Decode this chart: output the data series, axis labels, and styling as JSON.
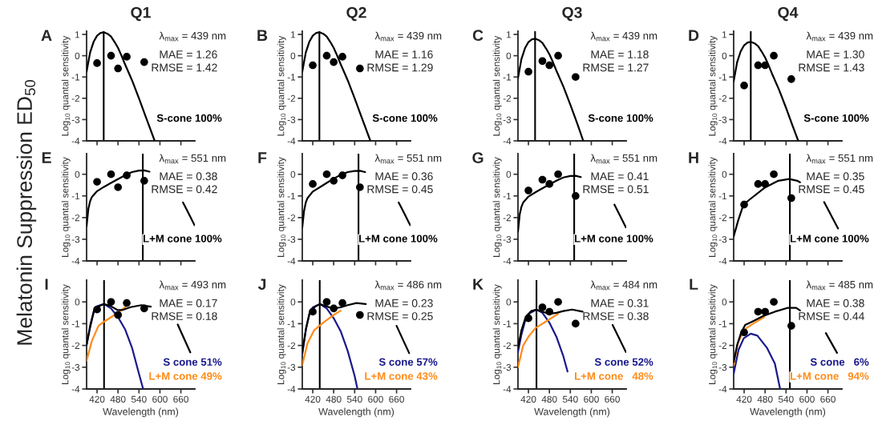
{
  "chart_data": [
    {
      "type": "line",
      "title": "Q1",
      "ylabel": "Log$_{10}$ quantal sensitivity",
      "xlim": [
        390,
        700
      ],
      "xticks": [
        420,
        480,
        540,
        600,
        660
      ],
      "ylim": [
        -4,
        1.15
      ],
      "yticks": [
        -4,
        -3,
        -2,
        -1,
        0,
        1
      ],
      "tick_labels": "y",
      "ref_lines": [
        {
          "axis": "x",
          "value": 439,
          "color": "#000000"
        }
      ],
      "annotations": [
        "A",
        "λ$_{max}$ = 439 nm",
        "MAE = 1.26",
        "RMSE = 1.42",
        "Melatonin Suppression ED$_{50}$"
      ],
      "series": [
        {
          "type": "scatter",
          "marker": "circle",
          "color": "#000000",
          "x": [
            420,
            460,
            480,
            505,
            555
          ],
          "values": [
            -0.35,
            0,
            -0.6,
            -0.05,
            -0.3
          ]
        },
        {
          "type": "line",
          "name": "S-cone 100%",
          "color": "#000000",
          "x": [
            390,
            400,
            410,
            420,
            430,
            439,
            450,
            460,
            470,
            480,
            490,
            500,
            520,
            540,
            560,
            585
          ],
          "values": [
            -0.75,
            0.15,
            0.65,
            0.94,
            1.07,
            1.1,
            1.03,
            0.9,
            0.65,
            0.37,
            0.0,
            -0.4,
            -1.15,
            -2.0,
            -2.9,
            -4.0
          ]
        }
      ]
    },
    {
      "type": "line",
      "title": "Q2",
      "ylabel": "Log$_{10}$ quantal sensitivity",
      "xlim": [
        390,
        700
      ],
      "xticks": [
        420,
        480,
        540,
        600,
        660
      ],
      "ylim": [
        -4,
        1.15
      ],
      "yticks": [
        -4,
        -3,
        -2,
        -1,
        0,
        1
      ],
      "tick_labels": "y",
      "ref_lines": [
        {
          "axis": "x",
          "value": 439,
          "color": "#000000"
        }
      ],
      "annotations": [
        "B",
        "λ$_{max}$ = 439 nm",
        "MAE = 1.16",
        "RMSE = 1.29"
      ],
      "series": [
        {
          "type": "scatter",
          "marker": "circle",
          "color": "#000000",
          "x": [
            420,
            460,
            480,
            505,
            555
          ],
          "values": [
            -0.45,
            0,
            -0.3,
            -0.05,
            -0.6
          ]
        },
        {
          "type": "line",
          "name": "S-cone 100%",
          "color": "#000000",
          "x": [
            390,
            400,
            410,
            420,
            430,
            439,
            450,
            460,
            470,
            480,
            490,
            500,
            520,
            540,
            560,
            585
          ],
          "values": [
            -0.75,
            0.15,
            0.65,
            0.94,
            1.07,
            1.1,
            1.03,
            0.9,
            0.65,
            0.37,
            0.0,
            -0.4,
            -1.15,
            -2.0,
            -2.9,
            -4.0
          ]
        }
      ]
    },
    {
      "type": "line",
      "title": "Q3",
      "ylabel": "Log$_{10}$ quantal sensitivity",
      "xlim": [
        390,
        700
      ],
      "xticks": [
        420,
        480,
        540,
        600,
        660
      ],
      "ylim": [
        -4,
        1.15
      ],
      "yticks": [
        -4,
        -3,
        -2,
        -1,
        0,
        1
      ],
      "tick_labels": "y",
      "ref_lines": [
        {
          "axis": "x",
          "value": 439,
          "color": "#000000"
        }
      ],
      "annotations": [
        "C",
        "λ$_{max}$ = 439 nm",
        "MAE = 1.18",
        "RMSE = 1.27"
      ],
      "series": [
        {
          "type": "scatter",
          "marker": "circle",
          "color": "#000000",
          "x": [
            420,
            460,
            480,
            505,
            555
          ],
          "values": [
            -0.75,
            -0.25,
            -0.45,
            0,
            -1.0
          ]
        },
        {
          "type": "line",
          "name": "S-cone 100%",
          "color": "#000000",
          "x": [
            390,
            400,
            410,
            420,
            430,
            439,
            450,
            460,
            470,
            480,
            490,
            500,
            520,
            540,
            560,
            577
          ],
          "values": [
            -1.05,
            -0.15,
            0.35,
            0.64,
            0.77,
            0.8,
            0.73,
            0.6,
            0.35,
            0.07,
            -0.3,
            -0.7,
            -1.45,
            -2.3,
            -3.2,
            -4.0
          ]
        }
      ]
    },
    {
      "type": "line",
      "title": "Q4",
      "ylabel": "Log$_{10}$ quantal sensitivity",
      "xlim": [
        390,
        700
      ],
      "xticks": [
        420,
        480,
        540,
        600,
        660
      ],
      "ylim": [
        -4,
        1.15
      ],
      "yticks": [
        -4,
        -3,
        -2,
        -1,
        0,
        1
      ],
      "tick_labels": "y",
      "ref_lines": [
        {
          "axis": "x",
          "value": 439,
          "color": "#000000"
        }
      ],
      "annotations": [
        "D",
        "λ$_{max}$ = 439 nm",
        "MAE = 1.30",
        "RMSE = 1.43"
      ],
      "series": [
        {
          "type": "scatter",
          "marker": "circle",
          "color": "#000000",
          "x": [
            420,
            460,
            480,
            505,
            555
          ],
          "values": [
            -1.4,
            -0.45,
            -0.45,
            0,
            -1.1
          ]
        },
        {
          "type": "line",
          "name": "S-cone 100%",
          "color": "#000000",
          "x": [
            390,
            400,
            410,
            420,
            430,
            439,
            450,
            460,
            470,
            480,
            490,
            500,
            520,
            540,
            560,
            575
          ],
          "values": [
            -1.2,
            -0.3,
            0.2,
            0.49,
            0.62,
            0.65,
            0.58,
            0.45,
            0.2,
            -0.08,
            -0.45,
            -0.85,
            -1.6,
            -2.45,
            -3.35,
            -4.0
          ]
        }
      ]
    },
    {
      "type": "line",
      "ylabel": "Log$_{10}$ quantal sensitivity",
      "xlim": [
        390,
        700
      ],
      "xticks": [
        420,
        480,
        540,
        600,
        660
      ],
      "ylim": [
        -4,
        0.95
      ],
      "yticks": [
        -4,
        -3,
        -2,
        -1,
        0
      ],
      "tick_labels": "y",
      "ref_lines": [
        {
          "axis": "x",
          "value": 551,
          "color": "#000000"
        }
      ],
      "annotations": [
        "E",
        "λ$_{max}$ = 551 nm",
        "MAE = 0.38",
        "RMSE = 0.42"
      ],
      "series": [
        {
          "type": "scatter",
          "marker": "circle",
          "color": "#000000",
          "x": [
            420,
            460,
            480,
            505,
            555
          ],
          "values": [
            -0.35,
            0,
            -0.6,
            -0.05,
            -0.3
          ]
        },
        {
          "type": "line",
          "name": "L+M cone 100%",
          "color": "#000000",
          "x": [
            390,
            395,
            400,
            405,
            420,
            440,
            460,
            480,
            500,
            520,
            540,
            555,
            570,
            610,
            666,
            682,
            699
          ],
          "values": [
            -2.4,
            -1.6,
            -1.25,
            -1.05,
            -0.78,
            -0.58,
            -0.4,
            -0.22,
            -0.05,
            0.1,
            0.17,
            0.18,
            0.12,
            null,
            -1.3,
            -1.8,
            -2.35
          ]
        }
      ]
    },
    {
      "type": "line",
      "ylabel": "Log$_{10}$ quantal sensitivity",
      "xlim": [
        390,
        700
      ],
      "xticks": [
        420,
        480,
        540,
        600,
        660
      ],
      "ylim": [
        -4,
        0.95
      ],
      "yticks": [
        -4,
        -3,
        -2,
        -1,
        0
      ],
      "tick_labels": "y",
      "ref_lines": [
        {
          "axis": "x",
          "value": 551,
          "color": "#000000"
        }
      ],
      "annotations": [
        "F",
        "λ$_{max}$ = 551 nm",
        "MAE = 0.36",
        "RMSE = 0.45"
      ],
      "series": [
        {
          "type": "scatter",
          "marker": "circle",
          "color": "#000000",
          "x": [
            420,
            460,
            480,
            505,
            555
          ],
          "values": [
            -0.45,
            0,
            -0.3,
            -0.05,
            -0.6
          ]
        },
        {
          "type": "line",
          "name": "L+M cone 100%",
          "color": "#000000",
          "x": [
            390,
            395,
            400,
            405,
            420,
            440,
            460,
            480,
            500,
            520,
            540,
            555,
            570,
            610,
            666,
            682,
            699
          ],
          "values": [
            -2.45,
            -1.7,
            -1.3,
            -1.1,
            -0.8,
            -0.6,
            -0.4,
            -0.2,
            -0.03,
            0.1,
            0.15,
            0.16,
            0.1,
            null,
            -1.3,
            -1.8,
            -2.35
          ]
        }
      ]
    },
    {
      "type": "line",
      "ylabel": "Log$_{10}$ quantal sensitivity",
      "xlim": [
        390,
        700
      ],
      "xticks": [
        420,
        480,
        540,
        600,
        660
      ],
      "ylim": [
        -4,
        0.95
      ],
      "yticks": [
        -4,
        -3,
        -2,
        -1,
        0
      ],
      "tick_labels": "y",
      "ref_lines": [
        {
          "axis": "x",
          "value": 551,
          "color": "#000000"
        }
      ],
      "annotations": [
        "G",
        "λ$_{max}$ = 551 nm",
        "MAE = 0.41",
        "RMSE = 0.51"
      ],
      "series": [
        {
          "type": "scatter",
          "marker": "circle",
          "color": "#000000",
          "x": [
            420,
            460,
            480,
            505,
            555
          ],
          "values": [
            -0.75,
            -0.25,
            -0.45,
            0,
            -1.0
          ]
        },
        {
          "type": "line",
          "name": "L+M cone 100%",
          "color": "#000000",
          "x": [
            390,
            395,
            400,
            405,
            420,
            440,
            460,
            480,
            500,
            520,
            540,
            555,
            570,
            610,
            666,
            682,
            699
          ],
          "values": [
            -2.65,
            -1.85,
            -1.5,
            -1.3,
            -1.03,
            -0.83,
            -0.65,
            -0.47,
            -0.3,
            -0.15,
            -0.08,
            -0.07,
            -0.13,
            null,
            -1.4,
            -1.9,
            -2.45
          ]
        }
      ]
    },
    {
      "type": "line",
      "ylabel": "Log$_{10}$ quantal sensitivity",
      "xlim": [
        390,
        700
      ],
      "xticks": [
        420,
        480,
        540,
        600,
        660
      ],
      "ylim": [
        -4,
        0.95
      ],
      "yticks": [
        -4,
        -3,
        -2,
        -1,
        0
      ],
      "tick_labels": "y",
      "ref_lines": [
        {
          "axis": "x",
          "value": 551,
          "color": "#000000"
        }
      ],
      "annotations": [
        "H",
        "λ$_{max}$ = 551 nm",
        "MAE = 0.35",
        "RMSE = 0.45"
      ],
      "series": [
        {
          "type": "scatter",
          "marker": "circle",
          "color": "#000000",
          "x": [
            420,
            460,
            480,
            505,
            555
          ],
          "values": [
            -1.4,
            -0.45,
            -0.45,
            0,
            -1.1
          ]
        },
        {
          "type": "line",
          "name": "L+M cone 100%",
          "color": "#000000",
          "x": [
            390,
            403,
            418,
            441,
            480,
            518,
            549,
            572,
            580,
            610,
            649,
            689
          ],
          "values": [
            -2.87,
            -2.13,
            -1.4,
            -1.1,
            -0.61,
            -0.3,
            -0.22,
            -0.3,
            -0.37,
            null,
            -1.28,
            -2.5
          ]
        }
      ]
    },
    {
      "type": "line",
      "ylabel": "Log$_{10}$ quantal sensitivity",
      "xlabel": "Wavelength (nm)",
      "xlim": [
        390,
        700
      ],
      "xticks": [
        420,
        480,
        540,
        600,
        660
      ],
      "ylim": [
        -4,
        1.0
      ],
      "yticks": [
        -4,
        -3,
        -2,
        -1,
        0
      ],
      "ref_lines": [
        {
          "axis": "x",
          "value": 440,
          "color": "#000000"
        }
      ],
      "annotations": [
        "I",
        "λ$_{max}$ = 493 nm",
        "MAE = 0.17",
        "RMSE = 0.18"
      ],
      "series": [
        {
          "type": "line",
          "name": "S cone 51%",
          "color": "#1a1a8c",
          "x": [
            390,
            400,
            410,
            420,
            440,
            460,
            480,
            500,
            520,
            540,
            552
          ],
          "values": [
            -2.0,
            -1.1,
            -0.45,
            -0.2,
            -0.1,
            -0.3,
            -0.7,
            -1.25,
            -2.1,
            -3.3,
            -4.0
          ]
        },
        {
          "type": "line",
          "name": "L+M cone 49%",
          "color": "#ff8c1a",
          "x": [
            390,
            405,
            424,
            439,
            470,
            501
          ],
          "values": [
            -2.7,
            -1.8,
            -1.1,
            -0.92,
            -0.6,
            -0.24
          ]
        },
        {
          "type": "line",
          "color": "#000000",
          "x": [
            390,
            401,
            412,
            428,
            439,
            458,
            478,
            493,
            516,
            547,
            574,
            610,
            651,
            687
          ],
          "values": [
            -1.95,
            -1.1,
            -0.37,
            -0.18,
            -0.1,
            -0.18,
            -0.37,
            -0.37,
            -0.24,
            -0.15,
            -0.22,
            null,
            -1.04,
            -2.32
          ]
        },
        {
          "type": "scatter",
          "marker": "circle",
          "color": "#000000",
          "x": [
            420,
            460,
            480,
            505,
            555
          ],
          "values": [
            -0.35,
            0,
            -0.6,
            -0.05,
            -0.3
          ]
        }
      ]
    },
    {
      "type": "line",
      "ylabel": "Log$_{10}$ quantal sensitivity",
      "xlabel": "Wavelength (nm)",
      "xlim": [
        390,
        700
      ],
      "xticks": [
        420,
        480,
        540,
        600,
        660
      ],
      "ylim": [
        -4,
        1.0
      ],
      "yticks": [
        -4,
        -3,
        -2,
        -1,
        0
      ],
      "ref_lines": [
        {
          "axis": "x",
          "value": 440,
          "color": "#000000"
        }
      ],
      "annotations": [
        "J",
        "λ$_{max}$ = 486 nm",
        "MAE = 0.23",
        "RMSE = 0.25"
      ],
      "series": [
        {
          "type": "line",
          "name": "S cone 57%",
          "color": "#1a1a8c",
          "x": [
            390,
            400,
            410,
            420,
            440,
            460,
            480,
            500,
            520,
            540,
            548
          ],
          "values": [
            -2.4,
            -1.3,
            -0.55,
            -0.25,
            -0.1,
            -0.3,
            -0.75,
            -1.35,
            -2.25,
            -3.4,
            -4.0
          ]
        },
        {
          "type": "line",
          "name": "L+M cone 43%",
          "color": "#ff8c1a",
          "x": [
            390,
            405,
            424,
            450,
            480,
            500
          ],
          "values": [
            -2.9,
            -1.9,
            -1.3,
            -0.95,
            -0.6,
            -0.4
          ]
        },
        {
          "type": "line",
          "color": "#000000",
          "x": [
            390,
            401,
            412,
            428,
            440,
            458,
            478,
            500,
            520,
            545,
            572,
            610,
            660,
            696
          ],
          "values": [
            -2.3,
            -1.2,
            -0.45,
            -0.2,
            -0.1,
            -0.2,
            -0.3,
            -0.25,
            -0.15,
            -0.05,
            -0.1,
            null,
            -1.1,
            -2.35
          ]
        },
        {
          "type": "scatter",
          "marker": "circle",
          "color": "#000000",
          "x": [
            420,
            460,
            480,
            505,
            555
          ],
          "values": [
            -0.45,
            0,
            -0.3,
            -0.05,
            -0.6
          ]
        }
      ]
    },
    {
      "type": "line",
      "ylabel": "Log$_{10}$ quantal sensitivity",
      "xlabel": "Wavelength (nm)",
      "xlim": [
        390,
        700
      ],
      "xticks": [
        420,
        480,
        540,
        600,
        660
      ],
      "ylim": [
        -4,
        1.0
      ],
      "yticks": [
        -4,
        -3,
        -2,
        -1,
        0
      ],
      "ref_lines": [
        {
          "axis": "x",
          "value": 443,
          "color": "#000000"
        }
      ],
      "annotations": [
        "K",
        "λ$_{max}$ = 484 nm",
        "MAE = 0.31",
        "RMSE = 0.38"
      ],
      "series": [
        {
          "type": "line",
          "name": "S cone 52%",
          "color": "#1a1a8c",
          "x": [
            390,
            400,
            410,
            420,
            443,
            460,
            480,
            500,
            520,
            532
          ],
          "values": [
            -2.3,
            -1.5,
            -0.9,
            -0.55,
            -0.35,
            -0.5,
            -0.95,
            -1.6,
            -2.5,
            -3.2
          ]
        },
        {
          "type": "line",
          "name": "L+M cone   48%",
          "color": "#ff8c1a",
          "x": [
            390,
            405,
            420,
            440,
            480,
            505
          ],
          "values": [
            -3.0,
            -2.0,
            -1.6,
            -1.2,
            -0.8,
            -0.55
          ]
        },
        {
          "type": "line",
          "color": "#000000",
          "x": [
            390,
            400,
            412,
            428,
            443,
            460,
            480,
            500,
            520,
            545,
            575,
            610,
            661,
            699
          ],
          "values": [
            -2.1,
            -1.3,
            -0.7,
            -0.42,
            -0.35,
            -0.45,
            -0.55,
            -0.5,
            -0.42,
            -0.35,
            -0.45,
            null,
            -1.06,
            -2.3
          ]
        },
        {
          "type": "scatter",
          "marker": "circle",
          "color": "#000000",
          "x": [
            420,
            460,
            480,
            505,
            555
          ],
          "values": [
            -0.75,
            -0.25,
            -0.45,
            0,
            -1.0
          ]
        }
      ]
    },
    {
      "type": "line",
      "ylabel": "Log$_{10}$ quantal sensitivity",
      "xlabel": "Wavelength (nm)",
      "xlim": [
        390,
        700
      ],
      "xticks": [
        420,
        480,
        540,
        600,
        660
      ],
      "ylim": [
        -4,
        1.0
      ],
      "yticks": [
        -4,
        -3,
        -2,
        -1,
        0
      ],
      "ref_lines": [
        {
          "axis": "x",
          "value": 551,
          "color": "#000000"
        }
      ],
      "annotations": [
        "L",
        "λ$_{max}$ = 485 nm",
        "MAE = 0.38",
        "RMSE = 0.44"
      ],
      "series": [
        {
          "type": "line",
          "name": "S cone   6%",
          "color": "#1a1a8c",
          "x": [
            390,
            404,
            419,
            439,
            458,
            485,
            508,
            523
          ],
          "values": [
            -3.3,
            -2.2,
            -1.67,
            -1.46,
            -1.55,
            -2.1,
            -2.83,
            -4.0
          ]
        },
        {
          "type": "line",
          "name": "L+M cone   94%",
          "color": "#ff8c1a",
          "x": [
            390,
            402,
            415,
            427,
            446,
            477
          ],
          "values": [
            -2.9,
            -1.9,
            -1.45,
            -1.2,
            -1.0,
            -0.7
          ]
        },
        {
          "type": "line",
          "color": "#000000",
          "x": [
            390,
            400,
            411,
            423,
            446,
            477,
            508,
            546,
            569,
            580,
            615,
            654,
            686
          ],
          "values": [
            -2.77,
            -1.98,
            -1.43,
            -1.06,
            -0.88,
            -0.63,
            -0.45,
            -0.27,
            -0.27,
            -0.39,
            null,
            -1.43,
            -2.34
          ]
        },
        {
          "type": "scatter",
          "marker": "circle",
          "color": "#000000",
          "x": [
            420,
            460,
            480,
            505,
            555
          ],
          "values": [
            -1.4,
            -0.45,
            -0.45,
            0,
            -1.1
          ]
        }
      ]
    }
  ]
}
